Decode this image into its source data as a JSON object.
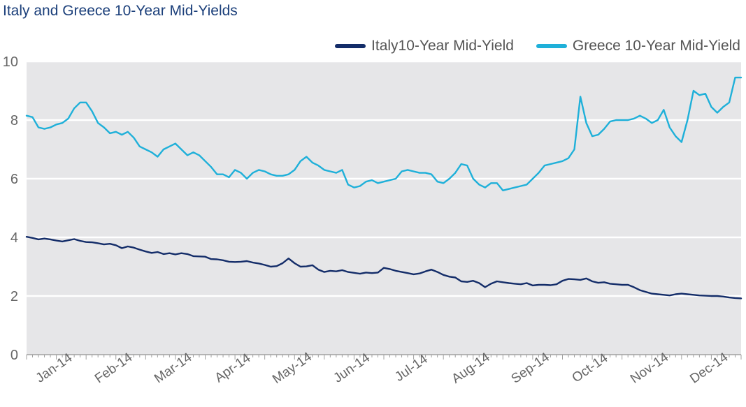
{
  "chart_data": {
    "type": "line",
    "title": "Italy and Greece 10-Year Mid-Yields",
    "xlabel": "",
    "ylabel": "",
    "ylim": [
      0,
      10
    ],
    "yticks": [
      0,
      2,
      4,
      6,
      8,
      10
    ],
    "xlim": [
      0,
      12
    ],
    "x_tick_labels": [
      "Jan-14",
      "Feb-14",
      "Mar-14",
      "Apr-14",
      "May-14",
      "Jun-14",
      "Jul-14",
      "Aug-14",
      "Sep-14",
      "Oct-14",
      "Nov-14",
      "Dec-14"
    ],
    "grid": true,
    "legend_position": "top-right",
    "x": [
      0.0,
      0.1,
      0.2,
      0.3,
      0.4,
      0.5,
      0.6,
      0.7,
      0.8,
      0.9,
      1.0,
      1.1,
      1.2,
      1.3,
      1.4,
      1.5,
      1.6,
      1.7,
      1.8,
      1.9,
      2.0,
      2.1,
      2.2,
      2.3,
      2.4,
      2.5,
      2.6,
      2.7,
      2.8,
      2.9,
      3.0,
      3.1,
      3.2,
      3.3,
      3.4,
      3.5,
      3.6,
      3.7,
      3.8,
      3.9,
      4.0,
      4.1,
      4.2,
      4.3,
      4.4,
      4.5,
      4.6,
      4.7,
      4.8,
      4.9,
      5.0,
      5.1,
      5.2,
      5.3,
      5.4,
      5.5,
      5.6,
      5.7,
      5.8,
      5.9,
      6.0,
      6.1,
      6.2,
      6.3,
      6.4,
      6.5,
      6.6,
      6.7,
      6.8,
      6.9,
      7.0,
      7.1,
      7.2,
      7.3,
      7.4,
      7.5,
      7.6,
      7.7,
      7.8,
      7.9,
      8.0,
      8.1,
      8.2,
      8.3,
      8.4,
      8.5,
      8.6,
      8.7,
      8.8,
      8.9,
      9.0,
      9.1,
      9.2,
      9.3,
      9.4,
      9.5,
      9.6,
      9.7,
      9.8,
      9.9,
      10.0,
      10.1,
      10.2,
      10.3,
      10.4,
      10.5,
      10.6,
      10.7,
      10.8,
      10.9,
      11.0,
      11.1,
      11.2,
      11.3,
      11.4,
      11.5,
      11.6,
      11.7,
      11.8,
      11.9,
      12.0
    ],
    "series": [
      {
        "name": "Italy10-Year Mid-Yield",
        "color": "#142d69",
        "values": [
          4.02,
          3.98,
          3.93,
          3.96,
          3.93,
          3.89,
          3.86,
          3.9,
          3.94,
          3.88,
          3.84,
          3.83,
          3.8,
          3.76,
          3.78,
          3.73,
          3.63,
          3.69,
          3.65,
          3.58,
          3.52,
          3.47,
          3.5,
          3.43,
          3.46,
          3.42,
          3.46,
          3.43,
          3.36,
          3.35,
          3.34,
          3.26,
          3.25,
          3.22,
          3.17,
          3.16,
          3.17,
          3.19,
          3.14,
          3.11,
          3.06,
          3.0,
          3.02,
          3.12,
          3.28,
          3.12,
          3.0,
          3.01,
          3.05,
          2.9,
          2.82,
          2.86,
          2.84,
          2.88,
          2.82,
          2.79,
          2.76,
          2.8,
          2.78,
          2.8,
          2.96,
          2.92,
          2.86,
          2.82,
          2.78,
          2.74,
          2.77,
          2.84,
          2.9,
          2.82,
          2.72,
          2.66,
          2.63,
          2.5,
          2.48,
          2.52,
          2.44,
          2.3,
          2.42,
          2.5,
          2.47,
          2.44,
          2.42,
          2.4,
          2.44,
          2.36,
          2.38,
          2.38,
          2.37,
          2.4,
          2.52,
          2.58,
          2.57,
          2.55,
          2.6,
          2.5,
          2.45,
          2.47,
          2.42,
          2.4,
          2.38,
          2.38,
          2.3,
          2.2,
          2.14,
          2.08,
          2.06,
          2.04,
          2.02,
          2.06,
          2.08,
          2.06,
          2.04,
          2.02,
          2.01,
          2.0,
          2.0,
          1.98,
          1.95,
          1.93,
          1.92
        ]
      },
      {
        "name": "Greece 10-Year Mid-Yield",
        "color": "#1fb0d9",
        "values": [
          8.15,
          8.1,
          7.75,
          7.7,
          7.75,
          7.85,
          7.9,
          8.05,
          8.4,
          8.6,
          8.6,
          8.3,
          7.9,
          7.75,
          7.55,
          7.6,
          7.5,
          7.6,
          7.4,
          7.1,
          7.0,
          6.9,
          6.75,
          7.0,
          7.1,
          7.2,
          7.0,
          6.8,
          6.9,
          6.8,
          6.6,
          6.4,
          6.15,
          6.15,
          6.05,
          6.3,
          6.2,
          6.0,
          6.2,
          6.3,
          6.25,
          6.15,
          6.1,
          6.1,
          6.15,
          6.3,
          6.6,
          6.75,
          6.55,
          6.45,
          6.3,
          6.25,
          6.2,
          6.3,
          5.8,
          5.7,
          5.75,
          5.9,
          5.95,
          5.85,
          5.9,
          5.95,
          6.0,
          6.25,
          6.3,
          6.25,
          6.2,
          6.2,
          6.15,
          5.9,
          5.85,
          6.0,
          6.2,
          6.5,
          6.45,
          6.0,
          5.8,
          5.7,
          5.85,
          5.85,
          5.6,
          5.65,
          5.7,
          5.75,
          5.8,
          6.0,
          6.2,
          6.45,
          6.5,
          6.55,
          6.6,
          6.7,
          7.0,
          8.8,
          7.9,
          7.45,
          7.5,
          7.7,
          7.95,
          8.0,
          8.0,
          8.0,
          8.05,
          8.15,
          8.05,
          7.9,
          8.0,
          8.35,
          7.75,
          7.45,
          7.25,
          8.0,
          9.0,
          8.85,
          8.9,
          8.45,
          8.25,
          8.45,
          8.6,
          9.45,
          9.45
        ]
      }
    ]
  }
}
